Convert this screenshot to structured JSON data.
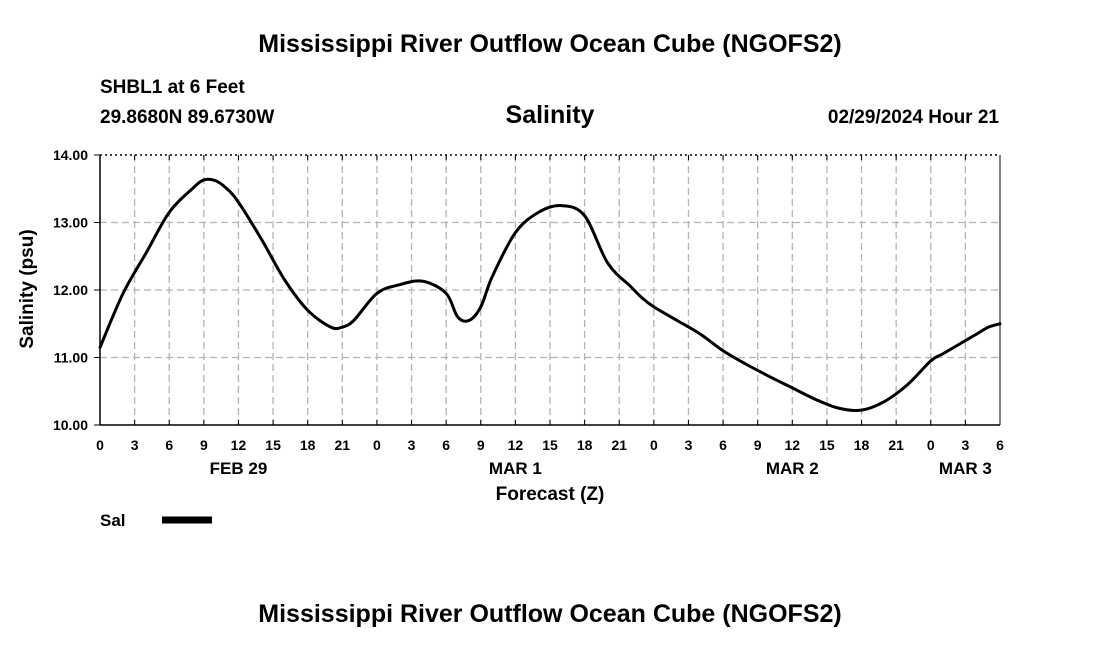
{
  "header": {
    "title": "Mississippi River Outflow Ocean Cube (NGOFS2)",
    "station": "SHBL1 at 6 Feet",
    "coords": "29.8680N  89.6730W",
    "datetime": "02/29/2024 Hour 21"
  },
  "footer": {
    "title": "Mississippi River Outflow Ocean Cube (NGOFS2)"
  },
  "chart_data": {
    "type": "line",
    "title": "Salinity",
    "xlabel": "Forecast (Z)",
    "ylabel": "Salinity (psu)",
    "xlim": [
      0,
      78
    ],
    "ylim": [
      10.0,
      14.0
    ],
    "grid": true,
    "yticks": [
      "10.00",
      "11.00",
      "12.00",
      "13.00",
      "14.00"
    ],
    "xticks": [
      "0",
      "3",
      "6",
      "9",
      "12",
      "15",
      "18",
      "21",
      "0",
      "3",
      "6",
      "9",
      "12",
      "15",
      "18",
      "21",
      "0",
      "3",
      "6",
      "9",
      "12",
      "15",
      "18",
      "21",
      "0",
      "3",
      "6"
    ],
    "date_labels": [
      {
        "label": "FEB 29",
        "hour": 12
      },
      {
        "label": "MAR 1",
        "hour": 36
      },
      {
        "label": "MAR 2",
        "hour": 60
      },
      {
        "label": "MAR 3",
        "hour": 75
      }
    ],
    "legend": [
      {
        "name": "Sal",
        "color": "#000000"
      }
    ],
    "series": [
      {
        "name": "Sal",
        "color": "#000000",
        "x": [
          0,
          2,
          4,
          6,
          8,
          9,
          10,
          11,
          12,
          14,
          16,
          18,
          20,
          21,
          22,
          24,
          26,
          28,
          30,
          31,
          32,
          33,
          34,
          36,
          38,
          40,
          42,
          44,
          46,
          47,
          48,
          50,
          52,
          54,
          56,
          58,
          60,
          62,
          64,
          66,
          68,
          70,
          72,
          73,
          74,
          75,
          76,
          77,
          78
        ],
        "y": [
          11.15,
          11.95,
          12.55,
          13.15,
          13.5,
          13.63,
          13.62,
          13.5,
          13.3,
          12.75,
          12.15,
          11.7,
          11.45,
          11.45,
          11.55,
          11.95,
          12.08,
          12.13,
          11.95,
          11.6,
          11.55,
          11.75,
          12.2,
          12.85,
          13.15,
          13.25,
          13.1,
          12.4,
          12.05,
          11.88,
          11.75,
          11.55,
          11.35,
          11.1,
          10.9,
          10.72,
          10.55,
          10.38,
          10.25,
          10.22,
          10.35,
          10.6,
          10.95,
          11.05,
          11.15,
          11.25,
          11.35,
          11.45,
          11.5
        ]
      }
    ]
  }
}
